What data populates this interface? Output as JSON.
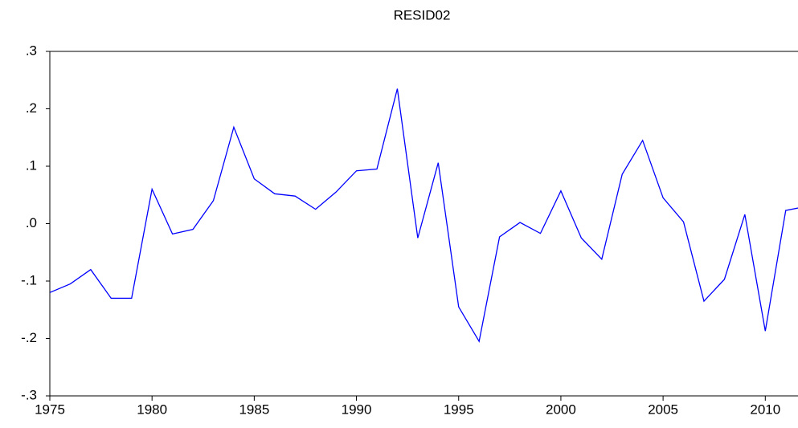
{
  "chart_data": {
    "type": "line",
    "title": "RESID02",
    "x": [
      1975,
      1976,
      1977,
      1978,
      1979,
      1980,
      1981,
      1982,
      1983,
      1984,
      1985,
      1986,
      1987,
      1988,
      1989,
      1990,
      1991,
      1992,
      1993,
      1994,
      1995,
      1996,
      1997,
      1998,
      1999,
      2000,
      2001,
      2002,
      2003,
      2004,
      2005,
      2006,
      2007,
      2008,
      2009,
      2010,
      2011,
      2012
    ],
    "series": [
      {
        "color": "#0000ff",
        "values": [
          -0.12,
          -0.105,
          -0.08,
          -0.13,
          -0.13,
          0.06,
          -0.018,
          -0.01,
          0.04,
          0.168,
          0.078,
          0.052,
          0.048,
          0.025,
          0.055,
          0.092,
          0.095,
          0.235,
          -0.025,
          0.106,
          -0.145,
          -0.205,
          -0.023,
          0.002,
          -0.017,
          0.057,
          -0.025,
          -0.062,
          0.086,
          0.145,
          0.045,
          0.003,
          -0.135,
          -0.097,
          0.016,
          -0.187,
          0.023,
          0.03
        ]
      }
    ],
    "xlim": [
      1975,
      2011.6
    ],
    "xticks": [
      1975,
      1980,
      1985,
      1990,
      1995,
      2000,
      2005,
      2010
    ],
    "ylim": [
      -0.3,
      0.3
    ],
    "yticks": [
      {
        "value": -0.3,
        "label": "-.3"
      },
      {
        "value": -0.2,
        "label": "-.2"
      },
      {
        "value": -0.1,
        "label": "-.1"
      },
      {
        "value": 0,
        "label": ".0"
      },
      {
        "value": 0.1,
        "label": ".1"
      },
      {
        "value": 0.2,
        "label": ".2"
      },
      {
        "value": 0.3,
        "label": ".3"
      }
    ]
  }
}
